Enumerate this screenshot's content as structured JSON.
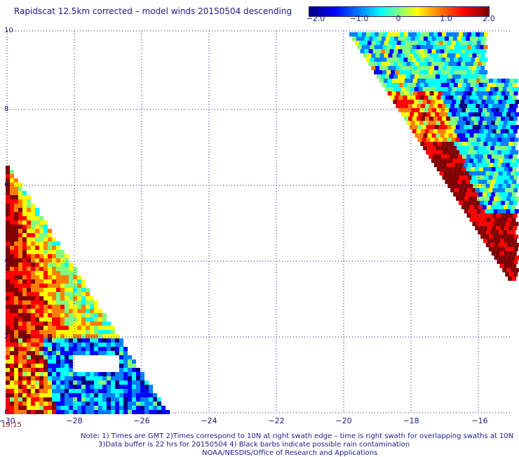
{
  "title": "Rapidscat 12.5km corrected – model winds 20150504 descending",
  "colorbar": {
    "ticks": [
      "−2.0",
      "−1.0",
      "0",
      "1.0",
      "2.0"
    ],
    "colors": [
      "#00007f",
      "#0000ff",
      "#0080ff",
      "#00ffff",
      "#80ff80",
      "#ffff00",
      "#ff8000",
      "#ff0000",
      "#800000"
    ]
  },
  "axes": {
    "x_ticks": [
      "−30",
      "−28",
      "−26",
      "−24",
      "−22",
      "−20",
      "−18",
      "−16"
    ],
    "y_ticks": [
      "0",
      "2",
      "4",
      "6",
      "8",
      "10"
    ],
    "xlim": [
      -30,
      -15
    ],
    "ylim": [
      0,
      10
    ],
    "grid": true
  },
  "time_label": "19:15",
  "notes": [
    "Note: 1) Times are GMT 2)Times correspond to 10N at right swath edge – time is right swath for overlapping swaths at 10N",
    "3)Data buffer is 22 hrs for 20150504 4) Black barbs indicate possible rain contamination",
    "NOAA/NESDIS/Office of Research and Applications"
  ]
}
